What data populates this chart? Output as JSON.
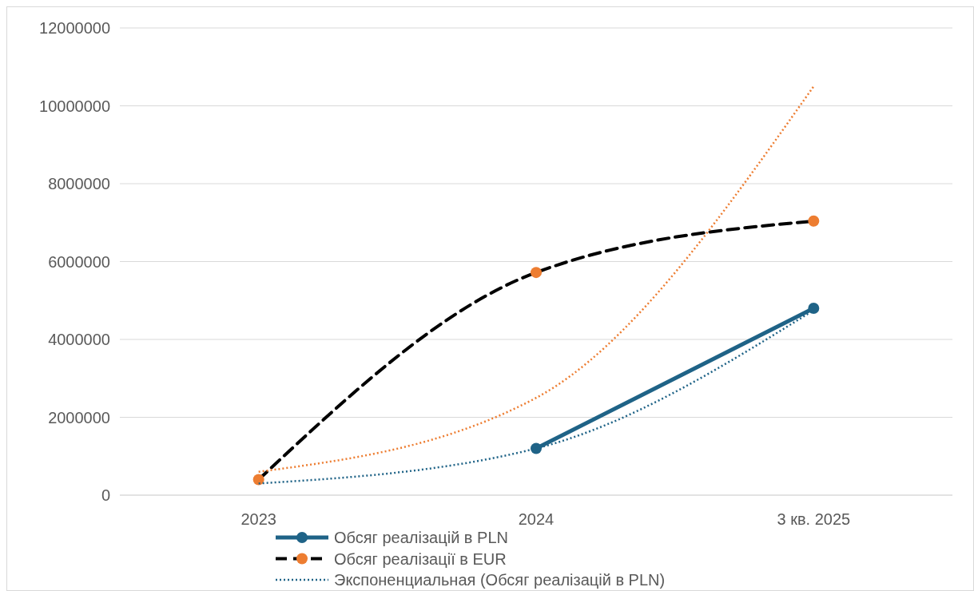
{
  "chart_data": {
    "type": "line",
    "categories": [
      "2023",
      "2024",
      "3 кв. 2025"
    ],
    "ylim": [
      0,
      12000000
    ],
    "yticks": [
      0,
      2000000,
      4000000,
      6000000,
      8000000,
      10000000,
      12000000
    ],
    "grid": "y",
    "legend": "bottom",
    "series": [
      {
        "name": "Обсяг реалізацій в PLN",
        "color": "#1f6387",
        "values": [
          null,
          1200000,
          4800000
        ],
        "marker": "circle",
        "line_style": "solid"
      },
      {
        "name": "Обсяг реалізації в EUR",
        "color": "#000000",
        "colors": [
          "#ed7d31",
          "#ed7d31",
          "#ed7d31"
        ],
        "values": [
          400000,
          5720000,
          7040000
        ],
        "marker": "circle",
        "line_style": "dashed"
      },
      {
        "name": "Экспоненциальная (Обсяг реалізацій в PLN)",
        "color": "#1f6387",
        "values": [
          300000,
          1200000,
          4750000
        ],
        "marker": "none",
        "line_style": "dotted"
      },
      {
        "color": "#ed7d31",
        "values": [
          600000,
          2500000,
          10500000
        ],
        "marker": "none",
        "line_style": "dotted"
      }
    ]
  }
}
